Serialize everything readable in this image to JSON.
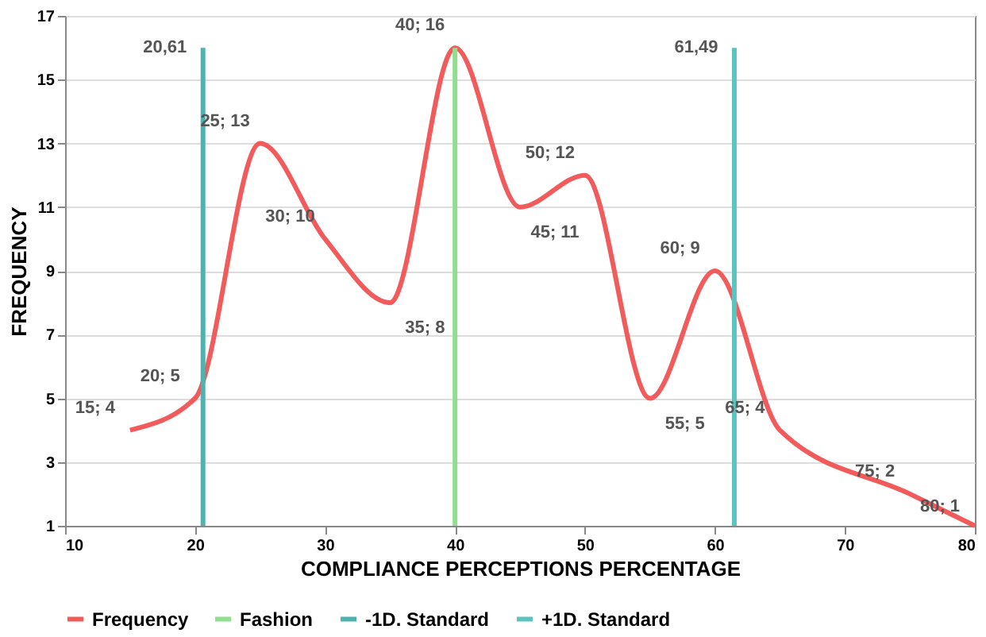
{
  "chart_data": {
    "type": "line",
    "xlabel": "COMPLIANCE PERCEPTIONS PERCENTAGE",
    "ylabel": "FREQUENCY",
    "xlim": [
      10,
      80
    ],
    "xticks": [
      10,
      20,
      30,
      40,
      50,
      60,
      70,
      80
    ],
    "ylim": [
      1,
      17
    ],
    "yticks": [
      1,
      3,
      5,
      7,
      9,
      11,
      13,
      15,
      17
    ],
    "grid": "y",
    "legend": "bottom",
    "line_style": "solid",
    "marker": "none",
    "series": [
      {
        "name": "Frequency",
        "color": "#f25b5b",
        "x": [
          15,
          20,
          25,
          30,
          35,
          40,
          45,
          50,
          55,
          60,
          65,
          75,
          80
        ],
        "values": [
          4,
          5,
          13,
          10,
          8,
          16,
          11,
          12,
          5,
          9,
          4,
          2,
          1
        ],
        "value_labels": [
          "15; 4",
          "20; 5",
          "25; 13",
          "30; 10",
          "35; 8",
          "40; 16",
          "45; 11",
          "50; 12",
          "55; 5",
          "60; 9",
          "65; 4",
          "75; 2",
          "80; 1"
        ]
      },
      {
        "name": "Fashion",
        "color": "#8fdf8f",
        "x": [
          40,
          40
        ],
        "values": [
          1,
          16
        ]
      },
      {
        "name": "-1D. Standard",
        "color": "#4db3ae",
        "x": [
          20.61,
          20.61
        ],
        "values": [
          1,
          16
        ]
      },
      {
        "name": "+1D. Standard",
        "color": "#5cc4bf",
        "x": [
          61.49,
          61.49
        ],
        "values": [
          1,
          16
        ]
      }
    ],
    "annotations": [
      {
        "text": "20,61",
        "x": 20.61,
        "y": 16
      },
      {
        "text": "61,49",
        "x": 61.49,
        "y": 16
      }
    ]
  }
}
